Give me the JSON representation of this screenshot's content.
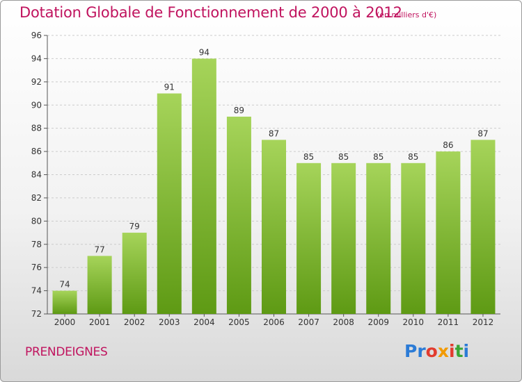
{
  "header": {
    "title": "Dotation Globale de Fonctionnement de 2000 à 2012",
    "subtitle": "(en milliers d'€)"
  },
  "footer": {
    "commune": "PRENDEIGNES",
    "logo_text": "Proxiti",
    "logo_colors": [
      "#2b7bd6",
      "#2b7bd6",
      "#e23b2e",
      "#f29a00",
      "#e23b2e",
      "#3aa635",
      "#2b7bd6"
    ]
  },
  "colors": {
    "bar_top": "#a6d45a",
    "bar_bottom": "#5e9a14",
    "text_accent": "#c0135e",
    "grid": "#cccccc"
  },
  "chart_data": {
    "type": "bar",
    "title": "Dotation Globale de Fonctionnement de 2000 à 2012",
    "subtitle": "(en milliers d'€)",
    "categories": [
      "2000",
      "2001",
      "2002",
      "2003",
      "2004",
      "2005",
      "2006",
      "2007",
      "2008",
      "2009",
      "2010",
      "2011",
      "2012"
    ],
    "values": [
      74,
      77,
      79,
      91,
      94,
      89,
      87,
      85,
      85,
      85,
      85,
      86,
      87
    ],
    "ylim": [
      72,
      96
    ],
    "yticks": [
      72,
      74,
      76,
      78,
      80,
      82,
      84,
      86,
      88,
      90,
      92,
      94,
      96
    ],
    "grid": true,
    "data_labels": true
  }
}
